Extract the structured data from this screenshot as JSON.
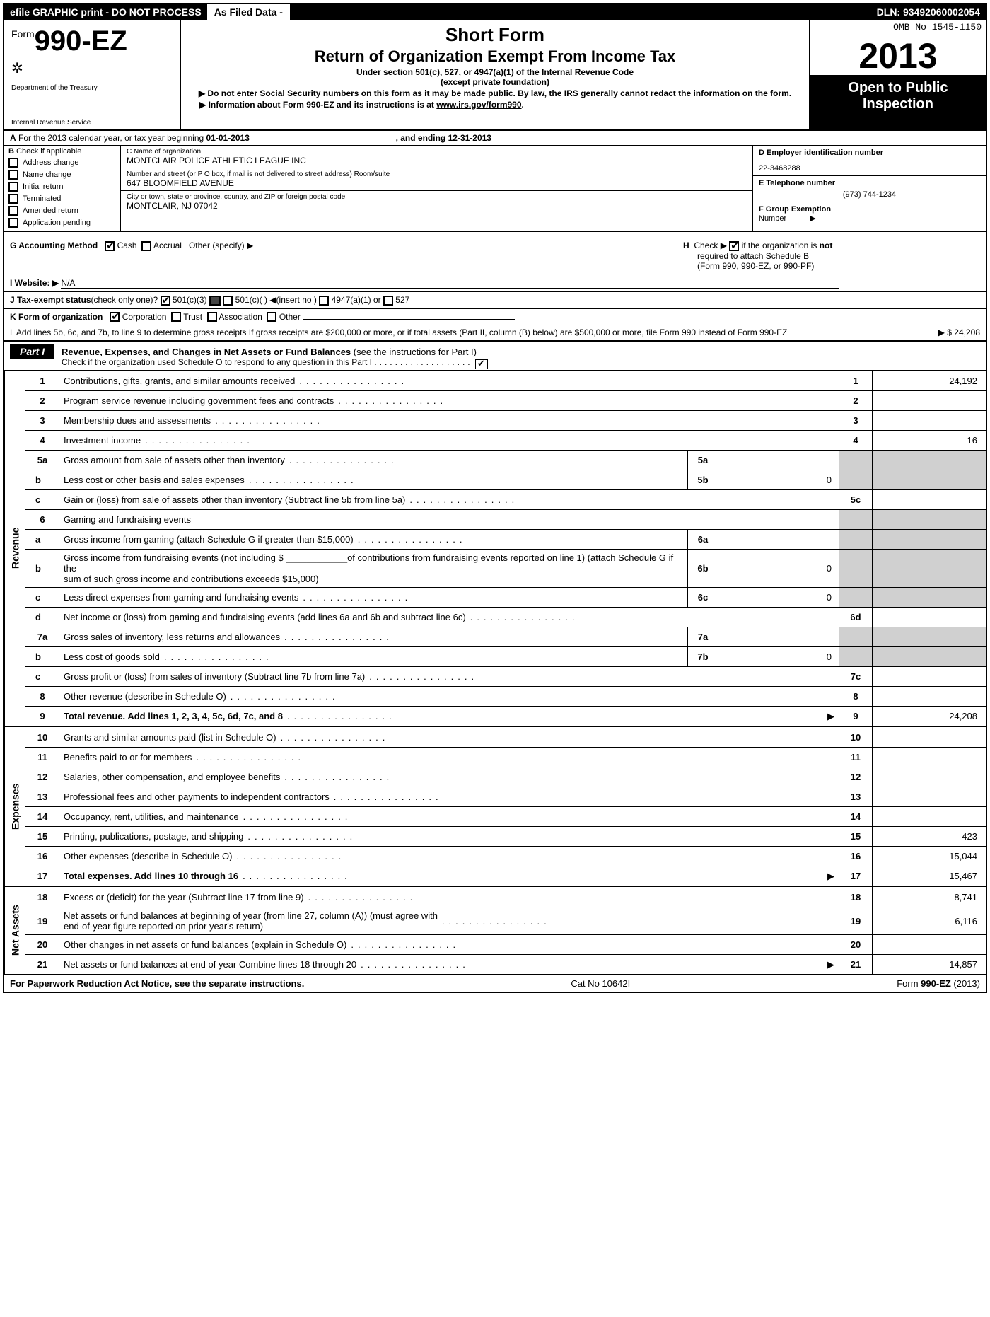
{
  "top_bar": {
    "left": "efile GRAPHIC print - DO NOT PROCESS",
    "mid": "As Filed Data -",
    "right": "DLN: 93492060002054"
  },
  "header": {
    "form_prefix": "Form",
    "form_number": "990-EZ",
    "dept1": "Department of the Treasury",
    "dept2": "Internal Revenue Service",
    "h1": "Short Form",
    "h2": "Return of Organization Exempt From Income Tax",
    "sub1": "Under section 501(c), 527, or 4947(a)(1) of the Internal Revenue Code",
    "sub2": "(except private foundation)",
    "warn1": "▶ Do not enter Social Security numbers on this form as it may be made public. By law, the IRS generally cannot redact the information on the form.",
    "warn2_pre": "▶ Information about Form 990-EZ and its instructions is at ",
    "warn2_link": "www.irs.gov/form990",
    "warn2_post": ".",
    "omb": "OMB No 1545-1150",
    "year": "2013",
    "open1": "Open to Public",
    "open2": "Inspection"
  },
  "line_a": {
    "prefix": "A",
    "text": " For the 2013 calendar year, or tax year beginning ",
    "begin": "01-01-2013",
    "mid": ", and ending ",
    "end": "12-31-2013"
  },
  "col_b": {
    "label": "B",
    "intro": "Check if applicable",
    "items": [
      "Address change",
      "Name change",
      "Initial return",
      "Terminated",
      "Amended return",
      "Application pending"
    ]
  },
  "col_c": {
    "name_label": "C Name of organization",
    "name": "MONTCLAIR POLICE ATHLETIC LEAGUE INC",
    "addr_label": "Number and street (or P O box, if mail is not delivered to street address) Room/suite",
    "addr": "647 BLOOMFIELD AVENUE",
    "city_label": "City or town, state or province, country, and ZIP or foreign postal code",
    "city": "MONTCLAIR, NJ  07042"
  },
  "col_def": {
    "d_label": "D Employer identification number",
    "d_val": "22-3468288",
    "e_label": "E Telephone number",
    "e_val": "(973) 744-1234",
    "f_label": "F Group Exemption",
    "f_label2": "Number",
    "f_arrow": "▶"
  },
  "sec_gh": {
    "g_label": "G Accounting Method",
    "g_cash": "Cash",
    "g_accrual": "Accrual",
    "g_other": "Other (specify) ▶",
    "h_pre": "H  Check ▶ ",
    "h_text": " if the organization is ",
    "h_not": "not",
    "h_line2": "required to attach Schedule B",
    "h_line3": "(Form 990, 990-EZ, or 990-PF)"
  },
  "line_i": {
    "label": "I Website: ▶",
    "val": "N/A"
  },
  "line_j": {
    "label": "J Tax-exempt status",
    "paren": "(check only one)?",
    "opt1": "501(c)(3)",
    "opt2": "501(c)(  ) ◀(insert no )",
    "opt3": "4947(a)(1) or",
    "opt4": "527"
  },
  "line_k": {
    "label": "K Form of organization",
    "opts": [
      "Corporation",
      "Trust",
      "Association",
      "Other"
    ],
    "checked": 0
  },
  "line_l": {
    "text": "L Add lines 5b, 6c, and 7b, to line 9 to determine gross receipts  If gross receipts are $200,000 or more, or if total assets (Part II, column (B) below) are $500,000 or more, file Form 990 instead of Form 990-EZ",
    "amt": "▶ $ 24,208"
  },
  "part1": {
    "tab": "Part I",
    "title": "Revenue, Expenses, and Changes in Net Assets or Fund Balances",
    "title_paren": " (see the instructions for Part I)",
    "sub": "Check if the organization used Schedule O to respond to any question in this Part I",
    "sub_dots": "...................",
    "check": true
  },
  "sides": {
    "revenue": "Revenue",
    "expenses": "Expenses",
    "netassets": "Net Assets"
  },
  "lines": {
    "1": {
      "n": "1",
      "d": "Contributions, gifts, grants, and similar amounts received",
      "en": "1",
      "ev": "24,192"
    },
    "2": {
      "n": "2",
      "d": "Program service revenue including government fees and contracts",
      "en": "2",
      "ev": ""
    },
    "3": {
      "n": "3",
      "d": "Membership dues and assessments",
      "en": "3",
      "ev": ""
    },
    "4": {
      "n": "4",
      "d": "Investment income",
      "en": "4",
      "ev": "16"
    },
    "5a": {
      "n": "5a",
      "d": "Gross amount from sale of assets other than inventory",
      "mn": "5a",
      "mv": ""
    },
    "5b": {
      "n": "b",
      "d": "Less  cost or other basis and sales expenses",
      "mn": "5b",
      "mv": "0"
    },
    "5c": {
      "n": "c",
      "d": "Gain or (loss) from sale of assets other than inventory (Subtract line 5b from line 5a)",
      "en": "5c",
      "ev": ""
    },
    "6": {
      "n": "6",
      "d": "Gaming and fundraising events"
    },
    "6a": {
      "n": "a",
      "d": "Gross income from gaming (attach Schedule G if greater than $15,000)",
      "mn": "6a",
      "mv": ""
    },
    "6b": {
      "n": "b",
      "d1": "Gross income from fundraising events (not including $ ____________of contributions from fundraising events reported on line 1) (attach Schedule G if the",
      "d2": "sum of such gross income and contributions exceeds $15,000)",
      "mn": "6b",
      "mv": "0"
    },
    "6c": {
      "n": "c",
      "d": "Less  direct expenses from gaming and fundraising events",
      "mn": "6c",
      "mv": "0"
    },
    "6d": {
      "n": "d",
      "d": "Net income or (loss) from gaming and fundraising events (add lines 6a and 6b and subtract line 6c)",
      "en": "6d",
      "ev": ""
    },
    "7a": {
      "n": "7a",
      "d": "Gross sales of inventory, less returns and allowances",
      "mn": "7a",
      "mv": ""
    },
    "7b": {
      "n": "b",
      "d": "Less  cost of goods sold",
      "mn": "7b",
      "mv": "0"
    },
    "7c": {
      "n": "c",
      "d": "Gross profit or (loss) from sales of inventory (Subtract line 7b from line 7a)",
      "en": "7c",
      "ev": ""
    },
    "8": {
      "n": "8",
      "d": "Other revenue (describe in Schedule O)",
      "en": "8",
      "ev": ""
    },
    "9": {
      "n": "9",
      "d": "Total revenue. Add lines 1, 2, 3, 4, 5c, 6d, 7c, and 8",
      "en": "9",
      "ev": "24,208",
      "bold": true,
      "arrow": true
    },
    "10": {
      "n": "10",
      "d": "Grants and similar amounts paid (list in Schedule O)",
      "en": "10",
      "ev": ""
    },
    "11": {
      "n": "11",
      "d": "Benefits paid to or for members",
      "en": "11",
      "ev": ""
    },
    "12": {
      "n": "12",
      "d": "Salaries, other compensation, and employee benefits",
      "en": "12",
      "ev": ""
    },
    "13": {
      "n": "13",
      "d": "Professional fees and other payments to independent contractors",
      "en": "13",
      "ev": ""
    },
    "14": {
      "n": "14",
      "d": "Occupancy, rent, utilities, and maintenance",
      "en": "14",
      "ev": ""
    },
    "15": {
      "n": "15",
      "d": "Printing, publications, postage, and shipping",
      "en": "15",
      "ev": "423"
    },
    "16": {
      "n": "16",
      "d": "Other expenses (describe in Schedule O)",
      "en": "16",
      "ev": "15,044"
    },
    "17": {
      "n": "17",
      "d": "Total expenses. Add lines 10 through 16",
      "en": "17",
      "ev": "15,467",
      "bold": true,
      "arrow": true
    },
    "18": {
      "n": "18",
      "d": "Excess or (deficit) for the year (Subtract line 17 from line 9)",
      "en": "18",
      "ev": "8,741"
    },
    "19": {
      "n": "19",
      "d1": "Net assets or fund balances at beginning of year (from line 27, column (A)) (must agree with",
      "d2": "end-of-year figure reported on prior year's return)",
      "en": "19",
      "ev": "6,116"
    },
    "20": {
      "n": "20",
      "d": "Other changes in net assets or fund balances (explain in Schedule O)",
      "en": "20",
      "ev": ""
    },
    "21": {
      "n": "21",
      "d": "Net assets or fund balances at end of year  Combine lines 18 through 20",
      "en": "21",
      "ev": "14,857",
      "arrow": true
    }
  },
  "footer": {
    "left": "For Paperwork Reduction Act Notice, see the separate instructions.",
    "mid": "Cat No 10642I",
    "right_pre": "Form ",
    "right_b": "990-EZ",
    "right_post": " (2013)"
  },
  "colors": {
    "black": "#000000",
    "white": "#ffffff",
    "shade": "#d0d0d0"
  }
}
